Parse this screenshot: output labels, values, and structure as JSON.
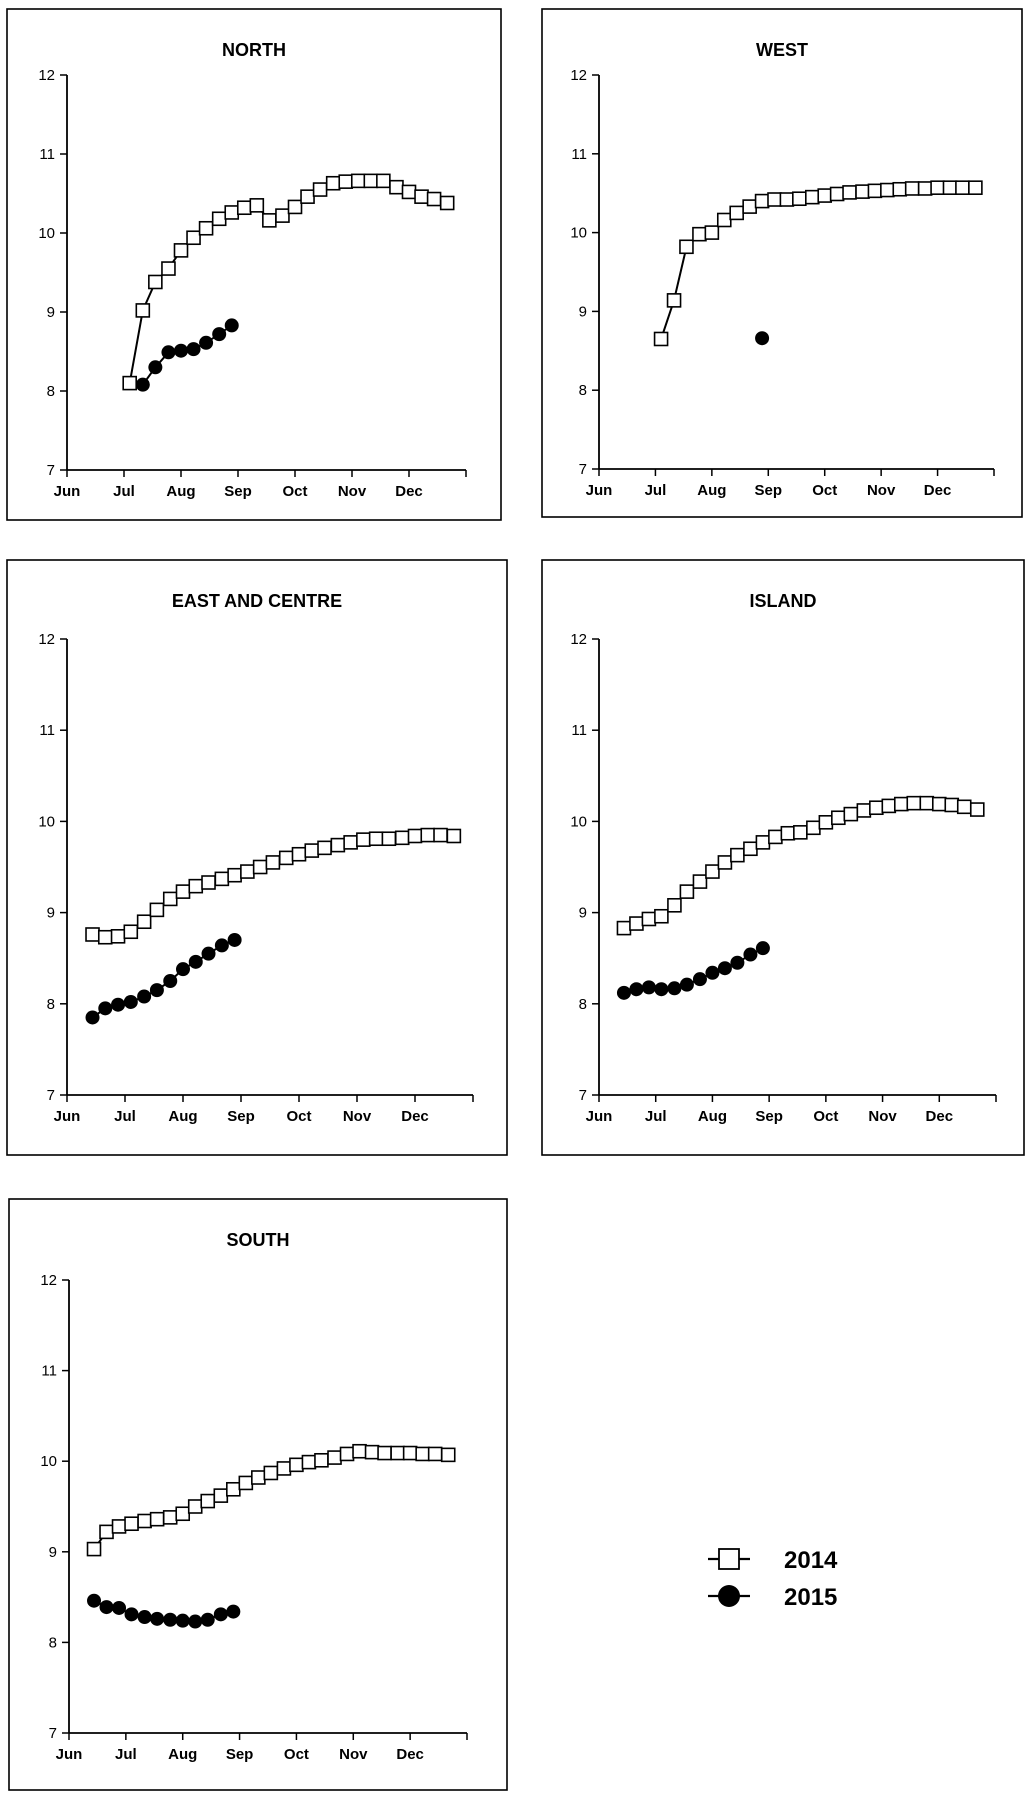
{
  "chart_data": [
    {
      "type": "line",
      "title": "NORTH",
      "xlabel": "",
      "ylabel": "",
      "ylim": [
        7,
        12
      ],
      "y_ticks": [
        "7",
        "8",
        "9",
        "10",
        "11",
        "12"
      ],
      "x_ticks": [
        "Jun",
        "Jul",
        "Aug",
        "Sep",
        "Oct",
        "Nov",
        "Dec"
      ],
      "series": [
        {
          "year": "2014",
          "x": [
            1.1,
            1.33,
            1.55,
            1.78,
            2.0,
            2.22,
            2.44,
            2.67,
            2.89,
            3.11,
            3.33,
            3.55,
            3.78,
            4.0,
            4.22,
            4.44,
            4.67,
            4.89,
            5.11,
            5.33,
            5.55,
            5.78,
            6.0,
            6.22,
            6.44,
            6.67
          ],
          "values": [
            8.1,
            9.02,
            9.38,
            9.55,
            9.78,
            9.94,
            10.06,
            10.18,
            10.26,
            10.32,
            10.35,
            10.16,
            10.22,
            10.33,
            10.46,
            10.55,
            10.63,
            10.65,
            10.66,
            10.66,
            10.66,
            10.58,
            10.52,
            10.46,
            10.43,
            10.38
          ]
        },
        {
          "year": "2015",
          "x": [
            1.33,
            1.55,
            1.78,
            2.0,
            2.22,
            2.44,
            2.67,
            2.89
          ],
          "values": [
            8.08,
            8.3,
            8.49,
            8.51,
            8.53,
            8.61,
            8.72,
            8.83
          ]
        }
      ]
    },
    {
      "type": "line",
      "title": "WEST",
      "xlabel": "",
      "ylabel": "",
      "ylim": [
        7,
        12
      ],
      "y_ticks": [
        "7",
        "8",
        "9",
        "10",
        "11",
        "12"
      ],
      "x_ticks": [
        "Jun",
        "Jul",
        "Aug",
        "Sep",
        "Oct",
        "Nov",
        "Dec"
      ],
      "series": [
        {
          "year": "2014",
          "x": [
            1.1,
            1.33,
            1.55,
            1.78,
            2.0,
            2.22,
            2.44,
            2.67,
            2.89,
            3.11,
            3.33,
            3.55,
            3.78,
            4.0,
            4.22,
            4.44,
            4.67,
            4.89,
            5.11,
            5.33,
            5.55,
            5.78,
            6.0,
            6.22,
            6.44,
            6.67
          ],
          "values": [
            8.65,
            9.14,
            9.82,
            9.98,
            10.0,
            10.16,
            10.25,
            10.33,
            10.4,
            10.42,
            10.42,
            10.43,
            10.45,
            10.47,
            10.49,
            10.51,
            10.52,
            10.53,
            10.54,
            10.55,
            10.56,
            10.56,
            10.57,
            10.57,
            10.57,
            10.57
          ]
        },
        {
          "year": "2015",
          "x": [
            2.89
          ],
          "values": [
            8.66
          ]
        }
      ]
    },
    {
      "type": "line",
      "title": "EAST AND CENTRE",
      "xlabel": "",
      "ylabel": "",
      "ylim": [
        7,
        12
      ],
      "y_ticks": [
        "7",
        "8",
        "9",
        "10",
        "11",
        "12"
      ],
      "x_ticks": [
        "Jun",
        "Jul",
        "Aug",
        "Sep",
        "Oct",
        "Nov",
        "Dec"
      ],
      "series": [
        {
          "year": "2014",
          "x": [
            0.44,
            0.66,
            0.88,
            1.1,
            1.33,
            1.55,
            1.78,
            2.0,
            2.22,
            2.44,
            2.67,
            2.89,
            3.11,
            3.33,
            3.55,
            3.78,
            4.0,
            4.22,
            4.44,
            4.67,
            4.89,
            5.11,
            5.33,
            5.55,
            5.78,
            6.0,
            6.22,
            6.44,
            6.67
          ],
          "values": [
            8.76,
            8.73,
            8.74,
            8.79,
            8.9,
            9.03,
            9.15,
            9.23,
            9.29,
            9.33,
            9.37,
            9.41,
            9.45,
            9.5,
            9.55,
            9.6,
            9.64,
            9.68,
            9.71,
            9.74,
            9.77,
            9.8,
            9.81,
            9.81,
            9.82,
            9.84,
            9.85,
            9.85,
            9.84
          ]
        },
        {
          "year": "2015",
          "x": [
            0.44,
            0.66,
            0.88,
            1.1,
            1.33,
            1.55,
            1.78,
            2.0,
            2.22,
            2.44,
            2.67,
            2.89
          ],
          "values": [
            7.85,
            7.95,
            7.99,
            8.02,
            8.08,
            8.15,
            8.25,
            8.38,
            8.46,
            8.55,
            8.64,
            8.7
          ]
        }
      ]
    },
    {
      "type": "line",
      "title": "ISLAND",
      "xlabel": "",
      "ylabel": "",
      "ylim": [
        7,
        12
      ],
      "y_ticks": [
        "7",
        "8",
        "9",
        "10",
        "11",
        "12"
      ],
      "x_ticks": [
        "Jun",
        "Jul",
        "Aug",
        "Sep",
        "Oct",
        "Nov",
        "Dec"
      ],
      "series": [
        {
          "year": "2014",
          "x": [
            0.44,
            0.66,
            0.88,
            1.1,
            1.33,
            1.55,
            1.78,
            2.0,
            2.22,
            2.44,
            2.67,
            2.89,
            3.11,
            3.33,
            3.55,
            3.78,
            4.0,
            4.22,
            4.44,
            4.67,
            4.89,
            5.11,
            5.33,
            5.55,
            5.78,
            6.0,
            6.22,
            6.44,
            6.67
          ],
          "values": [
            8.83,
            8.88,
            8.93,
            8.96,
            9.08,
            9.23,
            9.34,
            9.45,
            9.55,
            9.63,
            9.7,
            9.77,
            9.83,
            9.87,
            9.88,
            9.93,
            9.99,
            10.04,
            10.08,
            10.12,
            10.15,
            10.17,
            10.19,
            10.2,
            10.2,
            10.19,
            10.18,
            10.16,
            10.13
          ]
        },
        {
          "year": "2015",
          "x": [
            0.44,
            0.66,
            0.88,
            1.1,
            1.33,
            1.55,
            1.78,
            2.0,
            2.22,
            2.44,
            2.67,
            2.89
          ],
          "values": [
            8.12,
            8.16,
            8.18,
            8.16,
            8.17,
            8.21,
            8.27,
            8.34,
            8.39,
            8.45,
            8.54,
            8.61
          ]
        }
      ]
    },
    {
      "type": "line",
      "title": "SOUTH",
      "xlabel": "",
      "ylabel": "",
      "ylim": [
        7,
        12
      ],
      "y_ticks": [
        "7",
        "8",
        "9",
        "10",
        "11",
        "12"
      ],
      "x_ticks": [
        "Jun",
        "Jul",
        "Aug",
        "Sep",
        "Oct",
        "Nov",
        "Dec"
      ],
      "series": [
        {
          "year": "2014",
          "x": [
            0.44,
            0.66,
            0.88,
            1.1,
            1.33,
            1.55,
            1.78,
            2.0,
            2.22,
            2.44,
            2.67,
            2.89,
            3.11,
            3.33,
            3.55,
            3.78,
            4.0,
            4.22,
            4.44,
            4.67,
            4.89,
            5.11,
            5.33,
            5.55,
            5.78,
            6.0,
            6.22,
            6.44,
            6.67
          ],
          "values": [
            9.03,
            9.22,
            9.28,
            9.31,
            9.34,
            9.36,
            9.38,
            9.42,
            9.5,
            9.56,
            9.62,
            9.69,
            9.76,
            9.82,
            9.87,
            9.92,
            9.96,
            9.99,
            10.01,
            10.04,
            10.08,
            10.11,
            10.1,
            10.09,
            10.09,
            10.09,
            10.08,
            10.08,
            10.07
          ]
        },
        {
          "year": "2015",
          "x": [
            0.44,
            0.66,
            0.88,
            1.1,
            1.33,
            1.55,
            1.78,
            2.0,
            2.22,
            2.44,
            2.67,
            2.89
          ],
          "values": [
            8.46,
            8.39,
            8.38,
            8.31,
            8.28,
            8.26,
            8.25,
            8.24,
            8.23,
            8.25,
            8.31,
            8.34
          ]
        }
      ]
    }
  ],
  "legend": {
    "entries": [
      {
        "label": "2014",
        "marker": "open-square"
      },
      {
        "label": "2015",
        "marker": "filled-circle"
      }
    ]
  }
}
